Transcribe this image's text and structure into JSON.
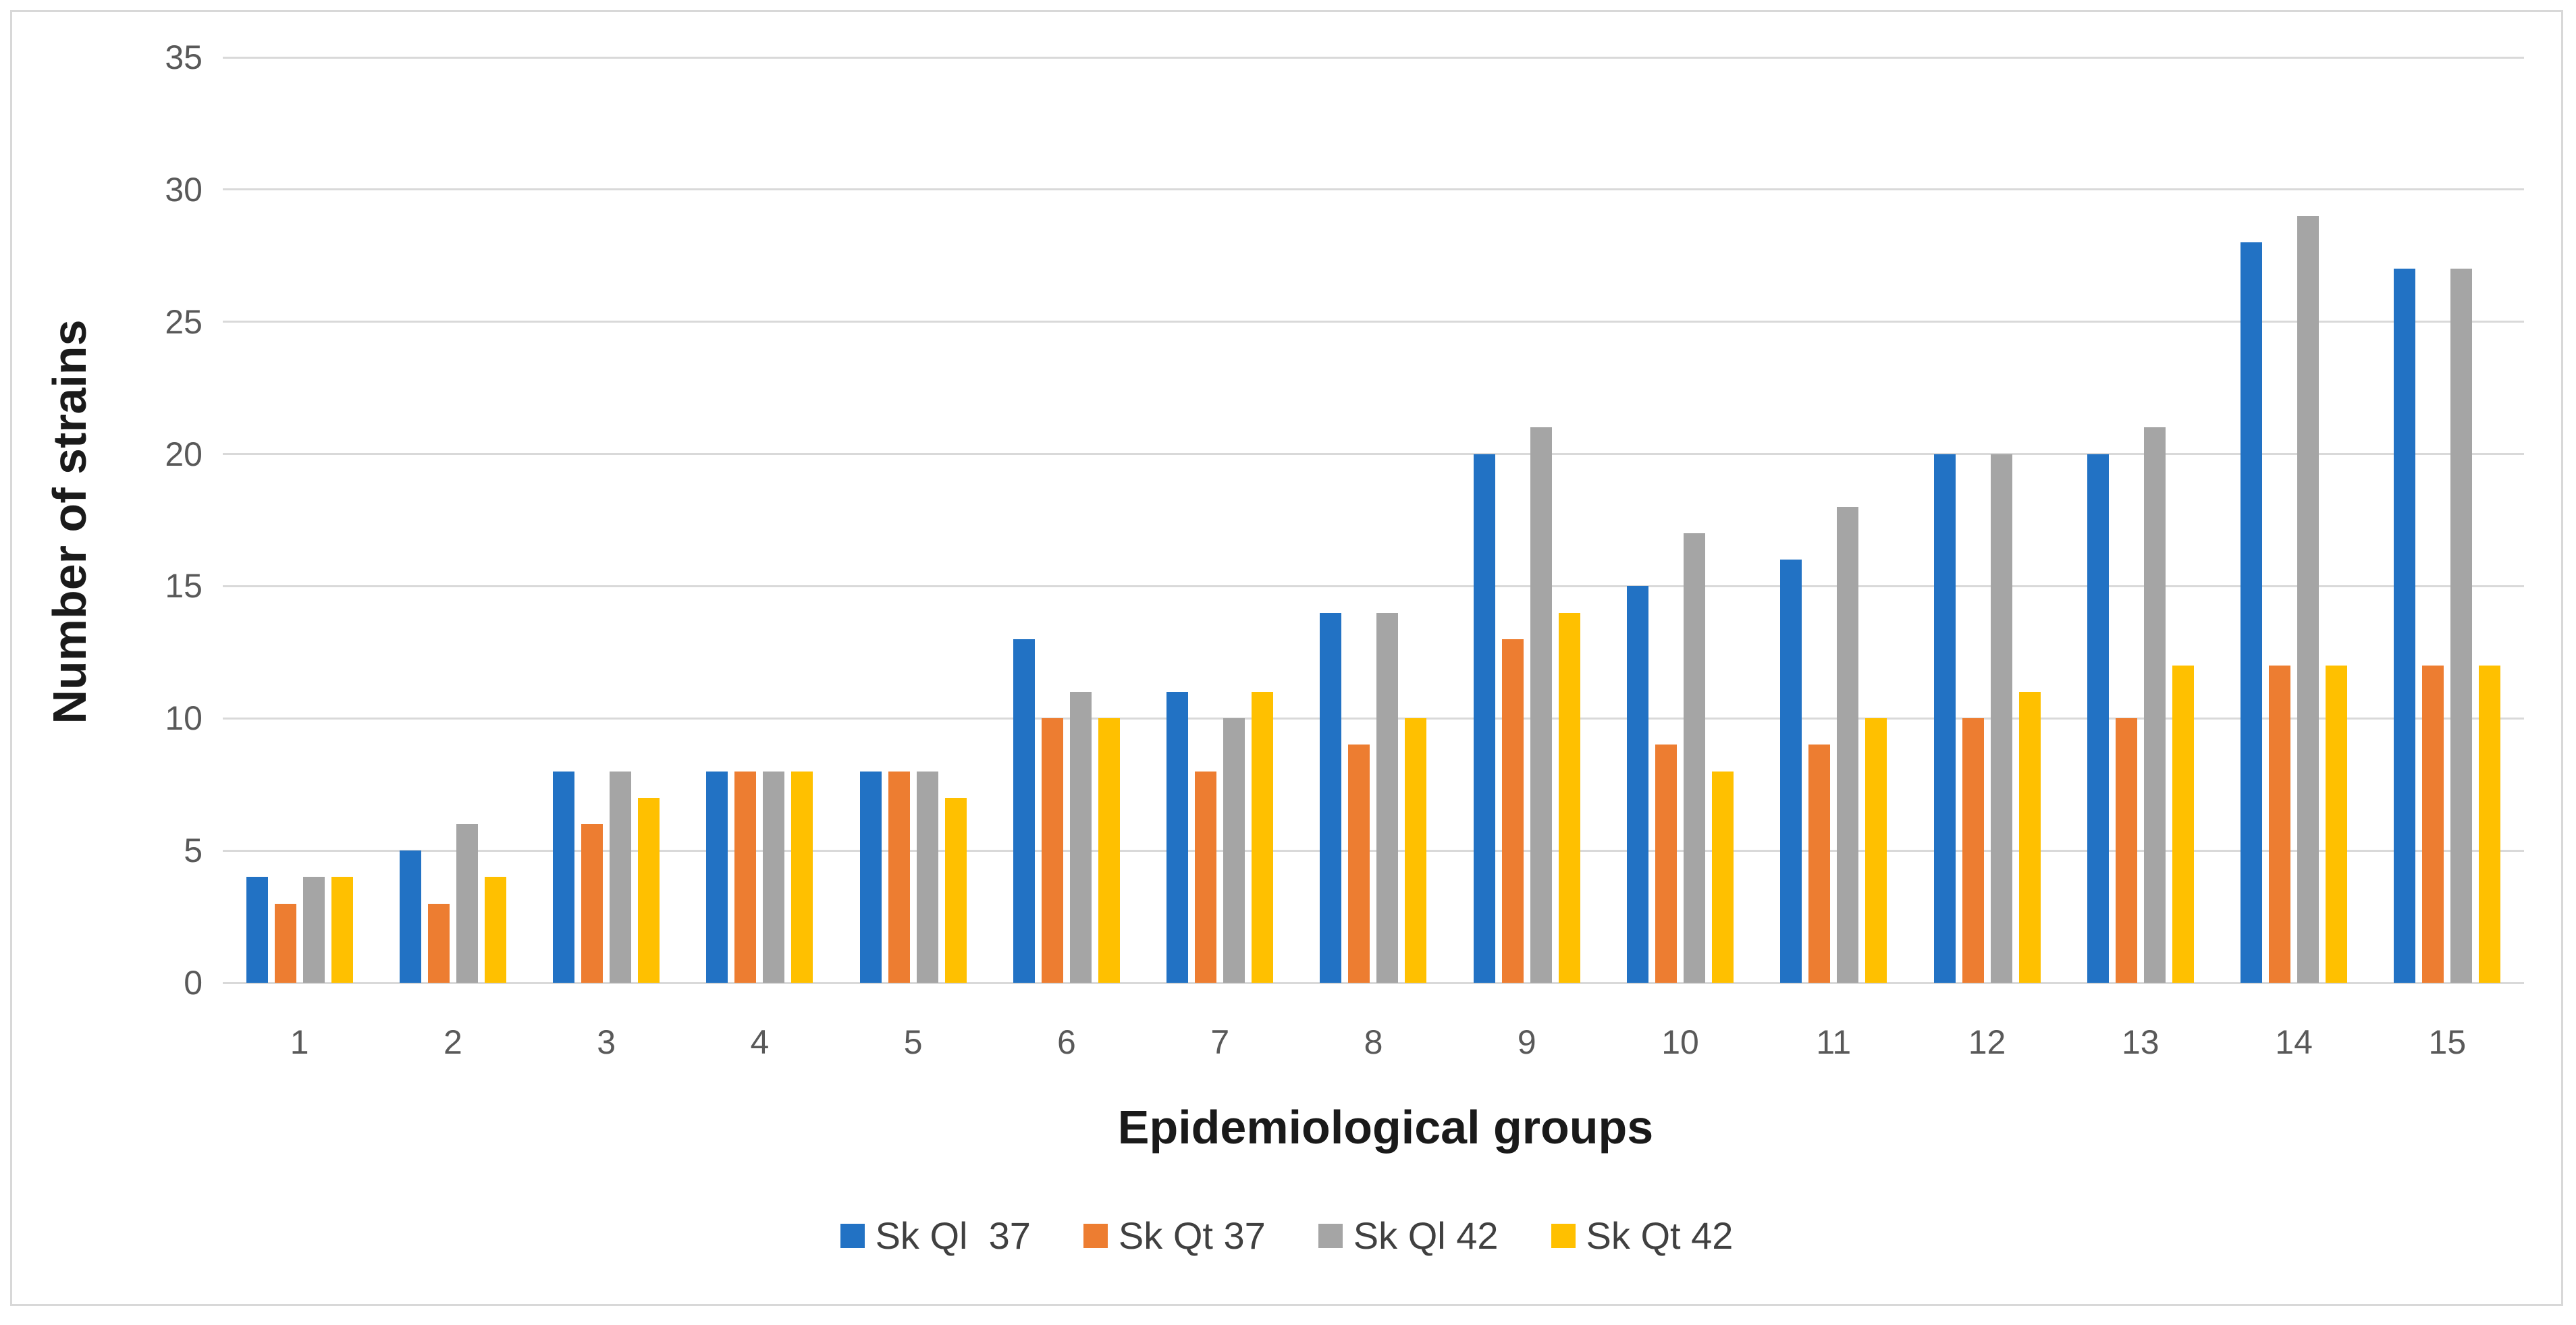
{
  "figure": {
    "background": "#FFFFFF",
    "border_color": "#D8D8D8"
  },
  "chart_data": {
    "type": "bar",
    "title": "",
    "xlabel": "Epidemiological groups",
    "ylabel": "Number of strains",
    "categories": [
      "1",
      "2",
      "3",
      "4",
      "5",
      "6",
      "7",
      "8",
      "9",
      "10",
      "11",
      "12",
      "13",
      "14",
      "15"
    ],
    "series": [
      {
        "name": "Sk Ql  37",
        "color": "#2272C4",
        "values": [
          4,
          5,
          8,
          8,
          8,
          13,
          11,
          14,
          20,
          15,
          16,
          20,
          20,
          28,
          27
        ]
      },
      {
        "name": "Sk Qt 37",
        "color": "#ED7D31",
        "values": [
          3,
          3,
          6,
          8,
          8,
          10,
          8,
          9,
          13,
          9,
          9,
          10,
          10,
          12,
          12
        ]
      },
      {
        "name": "Sk Ql 42",
        "color": "#A5A5A5",
        "values": [
          4,
          6,
          8,
          8,
          8,
          11,
          10,
          14,
          21,
          17,
          18,
          20,
          21,
          29,
          27
        ]
      },
      {
        "name": "Sk Qt 42",
        "color": "#FFC000",
        "values": [
          4,
          4,
          7,
          8,
          7,
          10,
          11,
          10,
          14,
          8,
          10,
          11,
          12,
          12,
          12
        ]
      }
    ],
    "ylim": [
      0,
      35
    ],
    "ytick_step": 5,
    "yticks": [
      "0",
      "5",
      "10",
      "15",
      "20",
      "25",
      "30",
      "35"
    ],
    "grid": true,
    "gridline_color": "#D9D9D9",
    "tick_label_color": "#595959",
    "axis_title_color": "#1A1A1A",
    "legend_text_color": "#404040",
    "legend_position": "bottom"
  }
}
